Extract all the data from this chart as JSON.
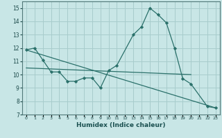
{
  "xlabel": "Humidex (Indice chaleur)",
  "background_color": "#c8e6e6",
  "grid_color": "#a8cccc",
  "line_color": "#2a706a",
  "xlim": [
    -0.5,
    23.5
  ],
  "ylim": [
    7,
    15.5
  ],
  "yticks": [
    7,
    8,
    9,
    10,
    11,
    12,
    13,
    14,
    15
  ],
  "xtick_labels": [
    "0",
    "1",
    "2",
    "3",
    "4",
    "5",
    "6",
    "7",
    "8",
    "9",
    "10",
    "11",
    "12",
    "13",
    "14",
    "15",
    "16",
    "17",
    "18",
    "19",
    "20",
    "21",
    "22",
    "23"
  ],
  "series_main": {
    "x": [
      0,
      1,
      2,
      3,
      4,
      5,
      6,
      7,
      8,
      9,
      10,
      11,
      13,
      14,
      15,
      16,
      17,
      18,
      19,
      20,
      22,
      23
    ],
    "y": [
      11.85,
      12.0,
      11.1,
      10.2,
      10.2,
      9.5,
      9.5,
      9.75,
      9.75,
      9.0,
      10.3,
      10.7,
      13.0,
      13.6,
      15.0,
      14.5,
      13.9,
      12.0,
      9.7,
      9.3,
      7.6,
      7.5
    ]
  },
  "trend_line": {
    "x": [
      0,
      23
    ],
    "y": [
      11.85,
      7.5
    ]
  },
  "flat_line": {
    "x": [
      0,
      20
    ],
    "y": [
      10.5,
      10.0
    ]
  }
}
